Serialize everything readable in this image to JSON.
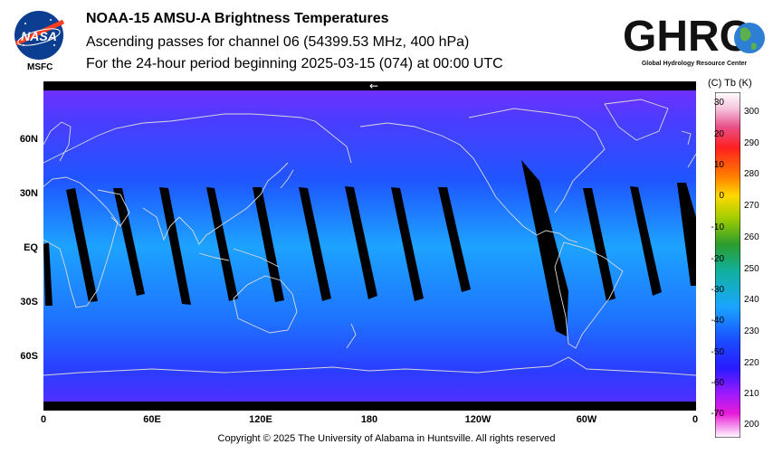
{
  "header": {
    "title": "NOAA-15 AMSU-A Brightness Temperatures",
    "subtitle": "Ascending passes for channel 06 (54399.53 MHz, 400 hPa)",
    "period": "For the 24-hour period beginning 2025-03-15 (074) at 00:00 UTC"
  },
  "logos": {
    "nasa_text": "NASA",
    "msfc": "MSFC",
    "ghrc_text": "GHRC",
    "ghrc_caption": "Global Hydrology Resource Center"
  },
  "map": {
    "lat_labels": [
      "60N",
      "30N",
      "EQ",
      "30S",
      "60S"
    ],
    "lon_labels": [
      "0",
      "60E",
      "120E",
      "180",
      "120W",
      "60W",
      "0"
    ],
    "direction_arrow": "←"
  },
  "colorbar": {
    "header": "(C)  Tb  (K)",
    "celsius_ticks": [
      "30",
      "20",
      "10",
      "0",
      "-10",
      "-20",
      "-30",
      "-40",
      "-50",
      "-60",
      "-70"
    ],
    "kelvin_ticks": [
      "300",
      "290",
      "280",
      "270",
      "260",
      "250",
      "240",
      "230",
      "220",
      "210",
      "200"
    ]
  },
  "footer": {
    "copyright": "Copyright © 2025 The University of Alabama in Huntsville.  All rights reserved"
  },
  "colors": {
    "ocean_background": "#1a44ff",
    "coastline": "#d8d8d8",
    "no_data": "#000000"
  }
}
